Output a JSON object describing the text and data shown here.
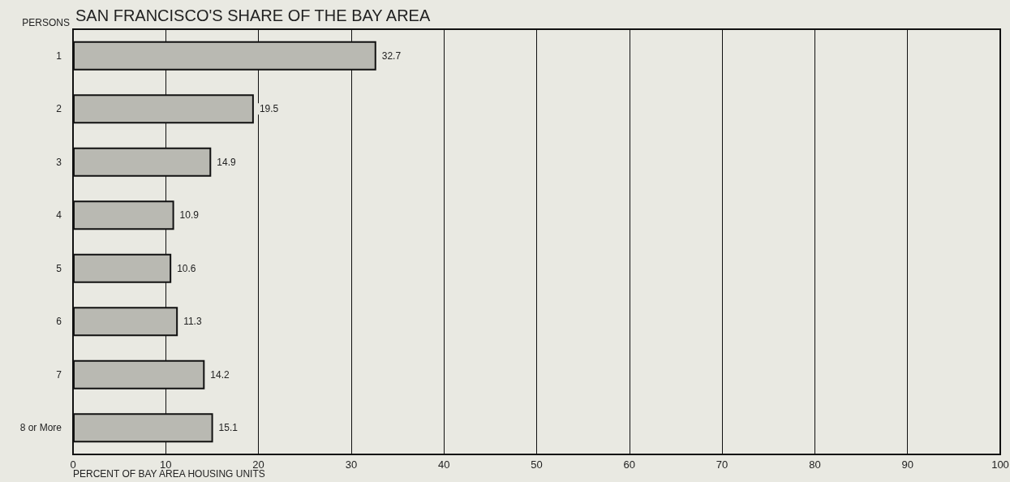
{
  "chart_data": {
    "type": "bar",
    "orientation": "horizontal",
    "title": "SAN FRANCISCO'S SHARE OF THE BAY AREA",
    "ylabel": "PERSONS",
    "xlabel": "PERCENT OF BAY AREA HOUSING UNITS",
    "categories": [
      "1",
      "2",
      "3",
      "4",
      "5",
      "6",
      "7",
      "8 or More"
    ],
    "values": [
      32.7,
      19.5,
      14.9,
      10.9,
      10.6,
      11.3,
      14.2,
      15.1
    ],
    "color": "#b9b9b2",
    "xlim": [
      0,
      100
    ],
    "xticks": [
      0,
      10,
      20,
      30,
      40,
      50,
      60,
      70,
      80,
      90,
      100
    ],
    "grid": "x",
    "data_labels": true
  }
}
